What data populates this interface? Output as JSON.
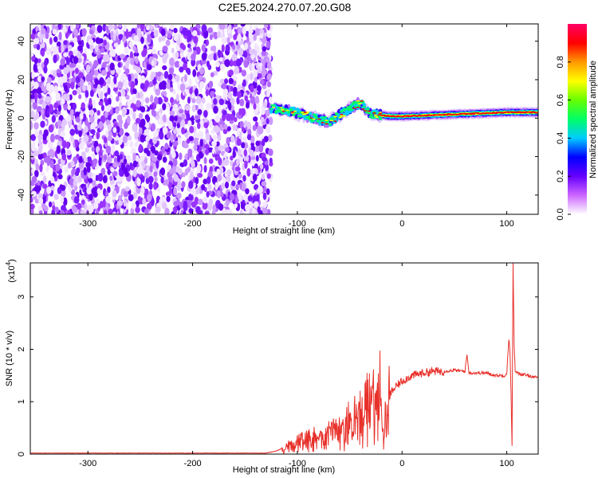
{
  "chart_data": [
    {
      "type": "heatmap",
      "title": "C2E5.2024.270.07.20.G08",
      "xlabel": "Height of straight line (km)",
      "ylabel": "Frequency (Hz)",
      "xlim": [
        -355,
        130
      ],
      "ylim": [
        -50,
        49
      ],
      "xticks": [
        -300,
        -200,
        -100,
        0,
        100
      ],
      "yticks": [
        -40,
        -20,
        0,
        20,
        40
      ],
      "grid": false,
      "colorbar": {
        "label": "Normalized spectral amplitude",
        "range": [
          0,
          1
        ],
        "ticks": [
          "0.0",
          "0.2",
          "0.4",
          "0.6",
          "0.8"
        ],
        "colors": [
          "#ffffff",
          "#cc66ff",
          "#6600ff",
          "#0000ff",
          "#00ccff",
          "#00ff66",
          "#66ff00",
          "#ffff00",
          "#ff9900",
          "#ff0000",
          "#ff0066"
        ]
      },
      "regions": [
        {
          "x_range": [
            -355,
            -125
          ],
          "description_value": "noise",
          "max_amplitude": 0.2
        },
        {
          "x_range": [
            -125,
            130
          ],
          "center_frequency": [
            [
              -125,
              5
            ],
            [
              -110,
              4
            ],
            [
              -90,
              1
            ],
            [
              -70,
              -2
            ],
            [
              -50,
              5
            ],
            [
              -40,
              8
            ],
            [
              -30,
              2
            ],
            [
              -10,
              1
            ],
            [
              0,
              1
            ],
            [
              50,
              2
            ],
            [
              100,
              3
            ],
            [
              130,
              3
            ]
          ],
          "peak_amplitude": 0.95
        }
      ]
    },
    {
      "type": "line",
      "title": "",
      "xlabel": "Height of straight line (km)",
      "ylabel": "SNR (10 * v/v)",
      "y_multiplier": "(x10",
      "y_multiplier_exp": "4",
      "y_multiplier_close": ")",
      "xlim": [
        -355,
        130
      ],
      "ylim": [
        0,
        3.65
      ],
      "xticks": [
        -300,
        -200,
        -100,
        0,
        100
      ],
      "yticks": [
        0,
        1,
        2,
        3
      ],
      "line_color": "#e8302a",
      "series": [
        {
          "x": [
            -355,
            -300,
            -200,
            -130,
            -120,
            -110,
            -100,
            -90,
            -80,
            -70,
            -60,
            -50,
            -40,
            -35,
            -30,
            -25,
            -20,
            -18,
            -15,
            -10,
            -5,
            0,
            10,
            20,
            30,
            40,
            50,
            60,
            62,
            64,
            70,
            80,
            90,
            98,
            100,
            102,
            103,
            104,
            105,
            106,
            107,
            108,
            110,
            115,
            120,
            130
          ],
          "y": [
            0.02,
            0.02,
            0.02,
            0.02,
            0.06,
            0.15,
            0.2,
            0.25,
            0.3,
            0.35,
            0.45,
            0.55,
            0.7,
            0.9,
            1.1,
            1.25,
            1.05,
            0.3,
            0.9,
            1.2,
            1.3,
            1.4,
            1.5,
            1.55,
            1.58,
            1.58,
            1.6,
            1.58,
            1.9,
            1.55,
            1.55,
            1.55,
            1.5,
            1.5,
            1.55,
            2.2,
            2.0,
            1.2,
            0.15,
            3.65,
            2.1,
            1.6,
            1.55,
            1.52,
            1.5,
            1.45
          ]
        }
      ]
    }
  ]
}
